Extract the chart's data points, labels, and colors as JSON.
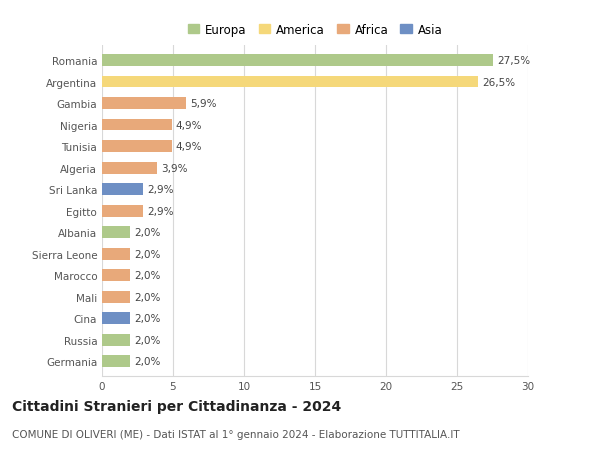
{
  "countries": [
    "Romania",
    "Argentina",
    "Gambia",
    "Nigeria",
    "Tunisia",
    "Algeria",
    "Sri Lanka",
    "Egitto",
    "Albania",
    "Sierra Leone",
    "Marocco",
    "Mali",
    "Cina",
    "Russia",
    "Germania"
  ],
  "values": [
    27.5,
    26.5,
    5.9,
    4.9,
    4.9,
    3.9,
    2.9,
    2.9,
    2.0,
    2.0,
    2.0,
    2.0,
    2.0,
    2.0,
    2.0
  ],
  "labels": [
    "27,5%",
    "26,5%",
    "5,9%",
    "4,9%",
    "4,9%",
    "3,9%",
    "2,9%",
    "2,9%",
    "2,0%",
    "2,0%",
    "2,0%",
    "2,0%",
    "2,0%",
    "2,0%",
    "2,0%"
  ],
  "continents": [
    "Europa",
    "America",
    "Africa",
    "Africa",
    "Africa",
    "Africa",
    "Asia",
    "Africa",
    "Europa",
    "Africa",
    "Africa",
    "Africa",
    "Asia",
    "Europa",
    "Europa"
  ],
  "colors": {
    "Europa": "#aec98a",
    "America": "#f5d87a",
    "Africa": "#e8a97a",
    "Asia": "#6e8fc4"
  },
  "legend_order": [
    "Europa",
    "America",
    "Africa",
    "Asia"
  ],
  "title": "Cittadini Stranieri per Cittadinanza - 2024",
  "subtitle": "COMUNE DI OLIVERI (ME) - Dati ISTAT al 1° gennaio 2024 - Elaborazione TUTTITALIA.IT",
  "xlim": [
    0,
    30
  ],
  "xticks": [
    0,
    5,
    10,
    15,
    20,
    25,
    30
  ],
  "bg_color": "#ffffff",
  "grid_color": "#d8d8d8",
  "bar_height": 0.55,
  "title_fontsize": 10,
  "subtitle_fontsize": 7.5,
  "label_fontsize": 7.5,
  "tick_fontsize": 7.5,
  "legend_fontsize": 8.5
}
